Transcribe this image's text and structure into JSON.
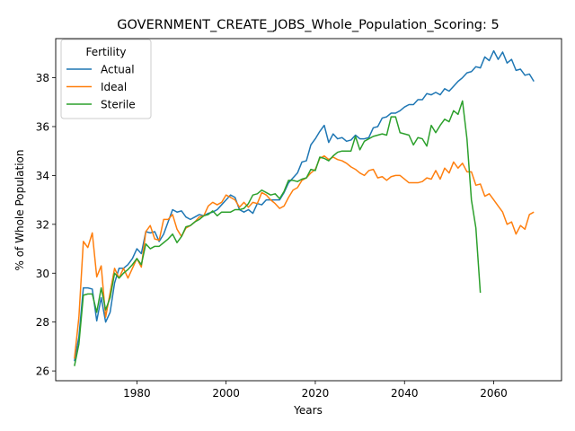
{
  "chart_data": {
    "type": "line",
    "title": "GOVERNMENT_CREATE_JOBS_Whole_Population_Scoring: 5",
    "xlabel": "Years",
    "ylabel": "% of Whole Population",
    "xlim": [
      1961.8,
      2075.2
    ],
    "ylim": [
      25.6,
      39.6
    ],
    "xticks": [
      1980,
      2000,
      2020,
      2040,
      2060
    ],
    "yticks": [
      26,
      28,
      30,
      32,
      34,
      36,
      38
    ],
    "grid": false,
    "legend": {
      "title": "Fertility",
      "placement": "upper-left"
    },
    "series": [
      {
        "name": "Actual",
        "color": "#1f77b4",
        "x": [
          1966,
          1967,
          1968,
          1969,
          1970,
          1971,
          1972,
          1973,
          1974,
          1975,
          1976,
          1977,
          1978,
          1979,
          1980,
          1981,
          1982,
          1983,
          1984,
          1985,
          1986,
          1987,
          1988,
          1989,
          1990,
          1991,
          1992,
          1993,
          1994,
          1995,
          1996,
          1997,
          1998,
          1999,
          2000,
          2001,
          2002,
          2003,
          2004,
          2005,
          2006,
          2007,
          2008,
          2009,
          2010,
          2011,
          2012,
          2013,
          2014,
          2015,
          2016,
          2017,
          2018,
          2019,
          2020,
          2021,
          2022,
          2023,
          2024,
          2025,
          2026,
          2027,
          2028,
          2029,
          2030,
          2031,
          2032,
          2033,
          2034,
          2035,
          2036,
          2037,
          2038,
          2039,
          2040,
          2041,
          2042,
          2043,
          2044,
          2045,
          2046,
          2047,
          2048,
          2049,
          2050,
          2051,
          2052,
          2053,
          2054,
          2055,
          2056,
          2057,
          2058,
          2059,
          2060,
          2061,
          2062,
          2063,
          2064,
          2065,
          2066,
          2067,
          2068,
          2069,
          2070
        ],
        "values": [
          26.4,
          27.4,
          29.4,
          29.4,
          29.35,
          28.05,
          29.0,
          28.0,
          28.4,
          29.6,
          30.2,
          30.2,
          30.35,
          30.6,
          31.0,
          30.8,
          31.7,
          31.65,
          31.7,
          31.3,
          31.6,
          32.1,
          32.6,
          32.5,
          32.55,
          32.3,
          32.2,
          32.3,
          32.4,
          32.35,
          32.45,
          32.5,
          32.6,
          32.8,
          33.0,
          33.2,
          33.1,
          32.6,
          32.5,
          32.6,
          32.45,
          32.85,
          32.8,
          33.0,
          33.0,
          33.0,
          33.0,
          33.3,
          33.7,
          33.9,
          34.1,
          34.55,
          34.6,
          35.25,
          35.5,
          35.8,
          36.05,
          35.35,
          35.7,
          35.5,
          35.55,
          35.4,
          35.45,
          35.65,
          35.5,
          35.5,
          35.55,
          35.95,
          36.0,
          36.35,
          36.4,
          36.55,
          36.55,
          36.65,
          36.8,
          36.9,
          36.9,
          37.1,
          37.1,
          37.35,
          37.3,
          37.4,
          37.3,
          37.55,
          37.45,
          37.65,
          37.85,
          38.0,
          38.2,
          38.25,
          38.45,
          38.4,
          38.85,
          38.7,
          39.1,
          38.75,
          39.05,
          38.6,
          38.75,
          38.3,
          38.35,
          38.1,
          38.15,
          37.85,
          null
        ]
      },
      {
        "name": "Ideal",
        "color": "#ff7f0e",
        "x": [
          1966,
          1967,
          1968,
          1969,
          1970,
          1971,
          1972,
          1973,
          1974,
          1975,
          1976,
          1977,
          1978,
          1979,
          1980,
          1981,
          1982,
          1983,
          1984,
          1985,
          1986,
          1987,
          1988,
          1989,
          1990,
          1991,
          1992,
          1993,
          1994,
          1995,
          1996,
          1997,
          1998,
          1999,
          2000,
          2001,
          2002,
          2003,
          2004,
          2005,
          2006,
          2007,
          2008,
          2009,
          2010,
          2011,
          2012,
          2013,
          2014,
          2015,
          2016,
          2017,
          2018,
          2019,
          2020,
          2021,
          2022,
          2023,
          2024,
          2025,
          2026,
          2027,
          2028,
          2029,
          2030,
          2031,
          2032,
          2033,
          2034,
          2035,
          2036,
          2037,
          2038,
          2039,
          2040,
          2041,
          2042,
          2043,
          2044,
          2045,
          2046,
          2047,
          2048,
          2049,
          2050,
          2051,
          2052,
          2053,
          2054,
          2055,
          2056,
          2057,
          2058,
          2059,
          2060,
          2061,
          2062,
          2063,
          2064,
          2065,
          2066,
          2067,
          2068,
          2069,
          2070
        ],
        "values": [
          26.5,
          28.2,
          31.3,
          31.05,
          31.65,
          29.85,
          30.3,
          28.2,
          29.2,
          30.2,
          29.8,
          30.2,
          29.8,
          30.2,
          30.6,
          30.25,
          31.7,
          31.95,
          31.4,
          31.35,
          32.2,
          32.2,
          32.4,
          31.8,
          31.5,
          31.85,
          31.95,
          32.1,
          32.3,
          32.35,
          32.75,
          32.9,
          32.8,
          32.9,
          33.2,
          33.1,
          33.0,
          32.7,
          32.9,
          32.7,
          32.9,
          32.85,
          33.3,
          33.2,
          33.0,
          32.85,
          32.65,
          32.75,
          33.1,
          33.4,
          33.5,
          33.8,
          33.9,
          34.1,
          34.25,
          34.7,
          34.8,
          34.65,
          34.75,
          34.65,
          34.6,
          34.5,
          34.35,
          34.25,
          34.1,
          34.0,
          34.2,
          34.25,
          33.9,
          33.95,
          33.8,
          33.95,
          34.0,
          34.0,
          33.85,
          33.7,
          33.7,
          33.7,
          33.75,
          33.9,
          33.85,
          34.2,
          33.85,
          34.3,
          34.1,
          34.55,
          34.3,
          34.5,
          34.15,
          34.15,
          33.6,
          33.65,
          33.15,
          33.25,
          33.0,
          32.75,
          32.5,
          32.0,
          32.1,
          31.6,
          31.95,
          31.8,
          32.4,
          32.5,
          null
        ]
      },
      {
        "name": "Sterile",
        "color": "#2ca02c",
        "x": [
          1966,
          1967,
          1968,
          1969,
          1970,
          1971,
          1972,
          1973,
          1974,
          1975,
          1976,
          1977,
          1978,
          1979,
          1980,
          1981,
          1982,
          1983,
          1984,
          1985,
          1986,
          1987,
          1988,
          1989,
          1990,
          1991,
          1992,
          1993,
          1994,
          1995,
          1996,
          1997,
          1998,
          1999,
          2000,
          2001,
          2002,
          2003,
          2004,
          2005,
          2006,
          2007,
          2008,
          2009,
          2010,
          2011,
          2012,
          2013,
          2014,
          2015,
          2016,
          2017,
          2018,
          2019,
          2020,
          2021,
          2022,
          2023,
          2024,
          2025,
          2026,
          2027,
          2028,
          2029,
          2030,
          2031,
          2032,
          2033,
          2034,
          2035,
          2036,
          2037,
          2038,
          2039,
          2040,
          2041,
          2042,
          2043,
          2044,
          2045,
          2046,
          2047,
          2048,
          2049,
          2050,
          2051,
          2052,
          2053,
          2054,
          2055,
          2056,
          2057,
          2058
        ],
        "values": [
          26.2,
          27.1,
          29.1,
          29.15,
          29.15,
          28.4,
          29.4,
          28.5,
          29.0,
          30.0,
          29.8,
          30.0,
          30.15,
          30.35,
          30.6,
          30.35,
          31.2,
          31.0,
          31.1,
          31.1,
          31.25,
          31.4,
          31.6,
          31.25,
          31.5,
          31.9,
          31.95,
          32.1,
          32.2,
          32.35,
          32.4,
          32.55,
          32.35,
          32.5,
          32.5,
          32.5,
          32.6,
          32.6,
          32.65,
          32.85,
          33.2,
          33.25,
          33.4,
          33.3,
          33.2,
          33.25,
          33.05,
          33.35,
          33.8,
          33.8,
          33.75,
          33.85,
          33.9,
          34.25,
          34.2,
          34.75,
          34.7,
          34.6,
          34.8,
          34.95,
          35.0,
          35.0,
          35.0,
          35.6,
          35.05,
          35.4,
          35.5,
          35.6,
          35.65,
          35.7,
          35.65,
          36.4,
          36.4,
          35.75,
          35.7,
          35.65,
          35.25,
          35.55,
          35.5,
          35.2,
          36.05,
          35.75,
          36.05,
          36.3,
          36.2,
          36.65,
          36.5,
          37.05,
          35.5,
          33.0,
          31.85,
          29.2,
          null
        ]
      }
    ]
  }
}
